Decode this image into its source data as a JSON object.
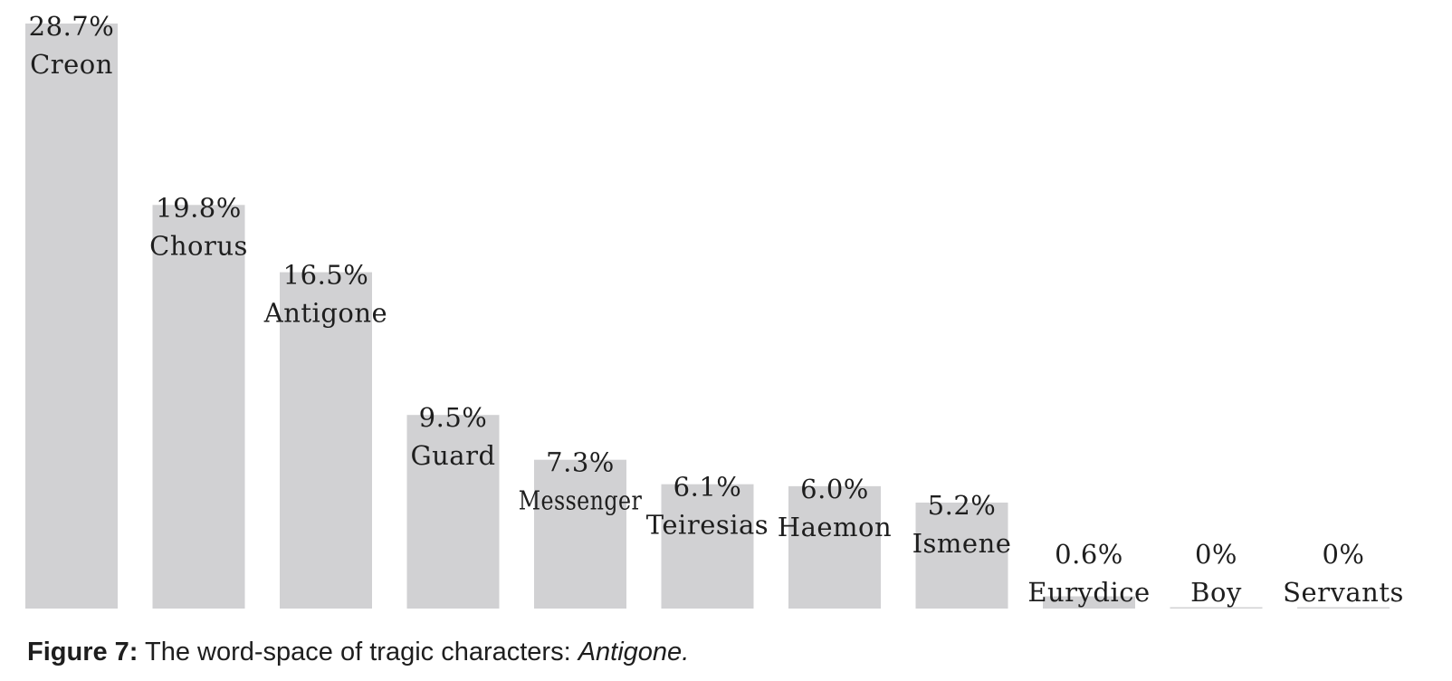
{
  "chart_data": {
    "type": "bar",
    "categories": [
      "Creon",
      "Chorus",
      "Antigone",
      "Guard",
      "Messenger",
      "Teiresias",
      "Haemon",
      "Ismene",
      "Eurydice",
      "Boy",
      "Servants"
    ],
    "values": [
      28.7,
      19.8,
      16.5,
      9.5,
      7.3,
      6.1,
      6.0,
      5.2,
      0.6,
      0,
      0
    ],
    "value_labels": [
      "28.7%",
      "19.8%",
      "16.5%",
      "9.5%",
      "7.3%",
      "6.1%",
      "6.0%",
      "5.2%",
      "0.6%",
      "0%",
      "0%"
    ],
    "title": "",
    "xlabel": "",
    "ylabel": "",
    "ylim": [
      0,
      28.7
    ],
    "grid": false,
    "legend": "none",
    "bar_color": "#d1d1d3"
  },
  "caption": {
    "label": "Figure 7:",
    "text": " The word-space of tragic characters: ",
    "title": "Antigone."
  }
}
